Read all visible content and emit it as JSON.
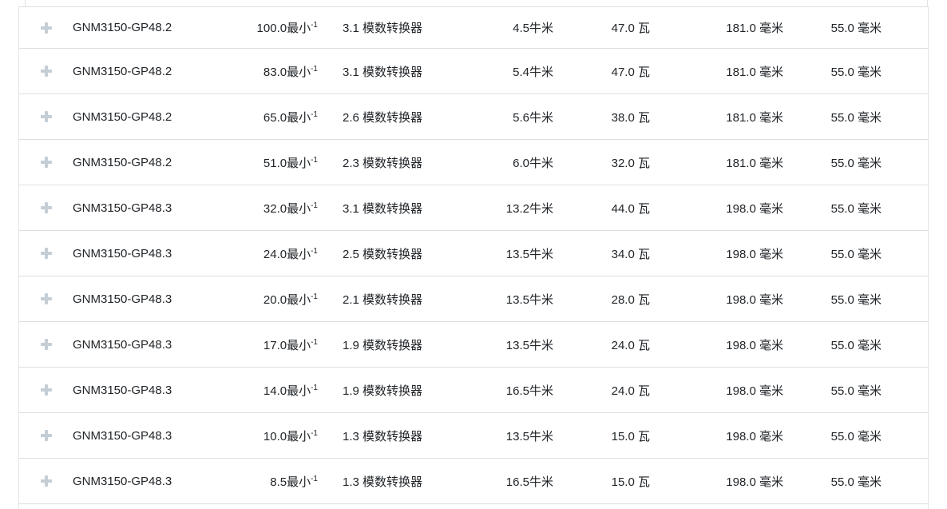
{
  "table": {
    "speed_superscript": "-1",
    "rows": [
      {
        "name": "GNM3150-GP48.2",
        "speed": "100.0最小",
        "ratio": "3.1 模数转换器",
        "torque": "4.5牛米",
        "power": "47.0 瓦",
        "length": "181.0 毫米",
        "width": "55.0 毫米"
      },
      {
        "name": "GNM3150-GP48.2",
        "speed": "83.0最小",
        "ratio": "3.1 模数转换器",
        "torque": "5.4牛米",
        "power": "47.0 瓦",
        "length": "181.0 毫米",
        "width": "55.0 毫米"
      },
      {
        "name": "GNM3150-GP48.2",
        "speed": "65.0最小",
        "ratio": "2.6 模数转换器",
        "torque": "5.6牛米",
        "power": "38.0 瓦",
        "length": "181.0 毫米",
        "width": "55.0 毫米"
      },
      {
        "name": "GNM3150-GP48.2",
        "speed": "51.0最小",
        "ratio": "2.3 模数转换器",
        "torque": "6.0牛米",
        "power": "32.0 瓦",
        "length": "181.0 毫米",
        "width": "55.0 毫米"
      },
      {
        "name": "GNM3150-GP48.3",
        "speed": "32.0最小",
        "ratio": "3.1 模数转换器",
        "torque": "13.2牛米",
        "power": "44.0 瓦",
        "length": "198.0 毫米",
        "width": "55.0 毫米"
      },
      {
        "name": "GNM3150-GP48.3",
        "speed": "24.0最小",
        "ratio": "2.5 模数转换器",
        "torque": "13.5牛米",
        "power": "34.0 瓦",
        "length": "198.0 毫米",
        "width": "55.0 毫米"
      },
      {
        "name": "GNM3150-GP48.3",
        "speed": "20.0最小",
        "ratio": "2.1 模数转换器",
        "torque": "13.5牛米",
        "power": "28.0 瓦",
        "length": "198.0 毫米",
        "width": "55.0 毫米"
      },
      {
        "name": "GNM3150-GP48.3",
        "speed": "17.0最小",
        "ratio": "1.9 模数转换器",
        "torque": "13.5牛米",
        "power": "24.0 瓦",
        "length": "198.0 毫米",
        "width": "55.0 毫米"
      },
      {
        "name": "GNM3150-GP48.3",
        "speed": "14.0最小",
        "ratio": "1.9 模数转换器",
        "torque": "16.5牛米",
        "power": "24.0 瓦",
        "length": "198.0 毫米",
        "width": "55.0 毫米"
      },
      {
        "name": "GNM3150-GP48.3",
        "speed": "10.0最小",
        "ratio": "1.3 模数转换器",
        "torque": "13.5牛米",
        "power": "15.0 瓦",
        "length": "198.0 毫米",
        "width": "55.0 毫米"
      },
      {
        "name": "GNM3150-GP48.3",
        "speed": "8.5最小",
        "ratio": "1.3 模数转换器",
        "torque": "16.5牛米",
        "power": "15.0 瓦",
        "length": "198.0 毫米",
        "width": "55.0 毫米"
      }
    ]
  },
  "icons": {
    "expand": "plus-icon"
  },
  "colors": {
    "row_border": "#dcdfe3",
    "side_border": "#e1e4e8",
    "text": "#212529",
    "plus_icon": "#c5cdd5",
    "background": "#ffffff"
  }
}
